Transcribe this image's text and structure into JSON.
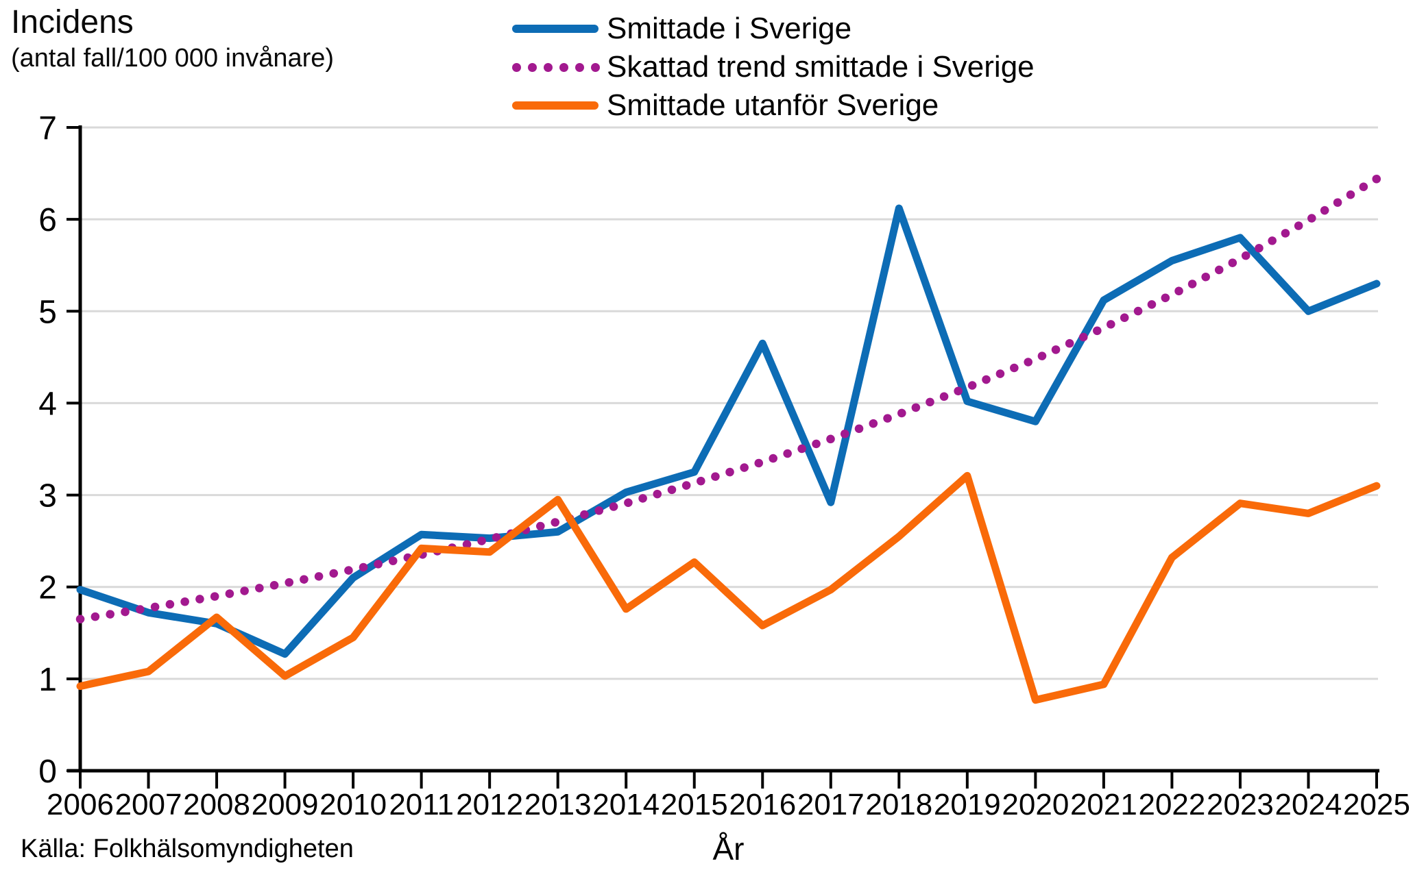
{
  "title": "Incidens",
  "subtitle": "(antal fall/100 000 invånare)",
  "source": "Källa: Folkhälsomyndigheten",
  "xaxis_title": "År",
  "colors": {
    "blue_series": "#0d6cb5",
    "trend_series": "#a2198f",
    "orange_series": "#f96a09",
    "gridline": "#d9d9d9",
    "axis": "#000000"
  },
  "legend": [
    {
      "label": "Smittade i Sverige",
      "color": "#0d6cb5",
      "style": "solid"
    },
    {
      "label": "Skattad trend smittade i Sverige",
      "color": "#a2198f",
      "style": "dotted"
    },
    {
      "label": "Smittade utanför Sverige",
      "color": "#f96a09",
      "style": "solid"
    }
  ],
  "chart_data": {
    "type": "line",
    "title": "Incidens (antal fall/100 000 invånare)",
    "xlabel": "År",
    "ylabel": "Incidens (antal fall/100 000 invånare)",
    "x": [
      2006,
      2007,
      2008,
      2009,
      2010,
      2011,
      2012,
      2013,
      2014,
      2015,
      2016,
      2017,
      2018,
      2019,
      2020,
      2021,
      2022,
      2023,
      2024,
      2025
    ],
    "ylim": [
      0,
      7
    ],
    "yticks": [
      0,
      1,
      2,
      3,
      4,
      5,
      6,
      7
    ],
    "grid": true,
    "legend_position": "top",
    "series": [
      {
        "name": "Smittade i Sverige",
        "color": "#0d6cb5",
        "style": "solid",
        "values": [
          1.97,
          1.72,
          1.6,
          1.27,
          2.1,
          2.57,
          2.53,
          2.6,
          3.03,
          3.25,
          4.65,
          2.92,
          6.12,
          4.02,
          3.8,
          5.12,
          5.55,
          5.8,
          5.0,
          5.3
        ]
      },
      {
        "name": "Skattad trend smittade i Sverige",
        "color": "#a2198f",
        "style": "dotted",
        "values": [
          1.65,
          1.77,
          1.9,
          2.04,
          2.19,
          2.35,
          2.52,
          2.71,
          2.91,
          3.13,
          3.36,
          3.61,
          3.88,
          4.17,
          4.48,
          4.82,
          5.18,
          5.57,
          5.99,
          6.44
        ]
      },
      {
        "name": "Smittade utanför Sverige",
        "color": "#f96a09",
        "style": "solid",
        "values": [
          0.92,
          1.08,
          1.67,
          1.03,
          1.45,
          2.42,
          2.38,
          2.95,
          1.76,
          2.27,
          1.58,
          1.97,
          2.55,
          3.21,
          0.77,
          0.94,
          2.32,
          2.91,
          2.8,
          3.1
        ]
      }
    ]
  }
}
